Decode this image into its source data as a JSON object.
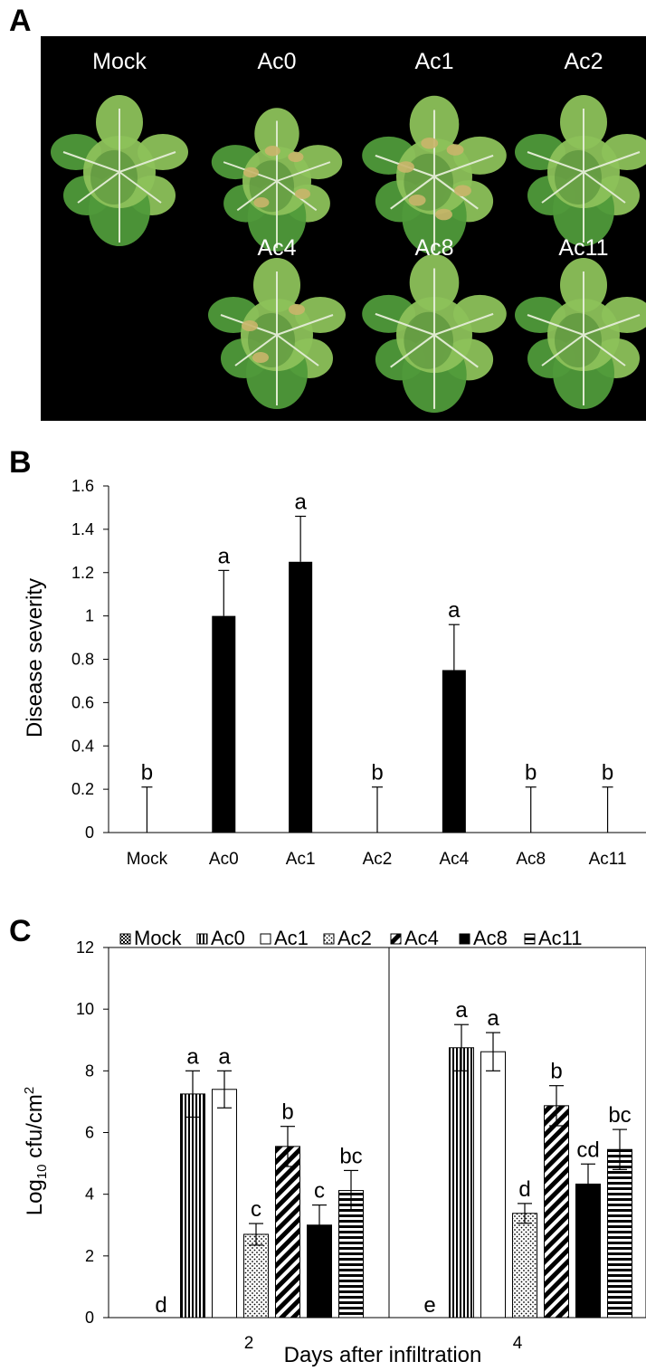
{
  "panels": {
    "a_letter": "A",
    "b_letter": "B",
    "c_letter": "C"
  },
  "photo": {
    "background_color": "#000000",
    "leaf_colors": {
      "main": "#4f9a3a",
      "dark": "#2f6e22",
      "light": "#8cc15a",
      "vein": "#dfead0",
      "lesion": "#c9b56a"
    },
    "row1": [
      {
        "label": "Mock",
        "lesions": 0
      },
      {
        "label": "Ac0",
        "lesions": 5
      },
      {
        "label": "Ac1",
        "lesions": 6
      },
      {
        "label": "Ac2",
        "lesions": 0
      }
    ],
    "row2": [
      {
        "label": "Ac4",
        "lesions": 3
      },
      {
        "label": "Ac8",
        "lesions": 0
      },
      {
        "label": "Ac11",
        "lesions": 0
      }
    ]
  },
  "chart_data": [
    {
      "type": "bar",
      "ylabel": "Disease severity",
      "xlabel": "",
      "ylim": [
        0,
        1.6
      ],
      "yticks": [
        0,
        0.2,
        0.4,
        0.6,
        0.8,
        1,
        1.2,
        1.4,
        1.6
      ],
      "ytick_labels": [
        "0",
        "0.2",
        "0.4",
        "0.6",
        "0.8",
        "1",
        "1.2",
        "1.4",
        "1.6"
      ],
      "categories": [
        "Mock",
        "Ac0",
        "Ac1",
        "Ac2",
        "Ac4",
        "Ac8",
        "Ac11"
      ],
      "values": [
        0,
        1,
        1.25,
        0,
        0.75,
        0,
        0
      ],
      "errors": [
        0.21,
        0.21,
        0.21,
        0.21,
        0.21,
        0.21,
        0.21
      ],
      "letters": [
        "b",
        "a",
        "a",
        "b",
        "a",
        "b",
        "b"
      ],
      "bar_color": "#000000",
      "grid": false
    },
    {
      "type": "bar",
      "ylabel_main": "Log",
      "ylabel_sub": "10",
      "ylabel_rest": " cfu/cm",
      "ylabel_sup": "2",
      "xlabel": "Days after infiltration",
      "ylim": [
        0,
        12
      ],
      "yticks": [
        0,
        2,
        4,
        6,
        8,
        10,
        12
      ],
      "ytick_labels": [
        "0",
        "2",
        "4",
        "6",
        "8",
        "10",
        "12"
      ],
      "categories": [
        "2",
        "4"
      ],
      "legend_position": "top",
      "series": [
        {
          "name": "Mock",
          "pattern": "checker",
          "values": [
            0,
            0
          ],
          "errors": [
            0,
            0
          ],
          "letters": [
            "d",
            "e"
          ]
        },
        {
          "name": "Ac0",
          "pattern": "vertical",
          "values": [
            7.25,
            8.75
          ],
          "errors": [
            0.75,
            0.75
          ],
          "letters": [
            "a",
            "a"
          ]
        },
        {
          "name": "Ac1",
          "pattern": "white",
          "values": [
            7.4,
            8.62
          ],
          "errors": [
            0.6,
            0.62
          ],
          "letters": [
            "a",
            "a"
          ]
        },
        {
          "name": "Ac2",
          "pattern": "dots",
          "values": [
            2.7,
            3.38
          ],
          "errors": [
            0.35,
            0.32
          ],
          "letters": [
            "c",
            "d"
          ]
        },
        {
          "name": "Ac4",
          "pattern": "diagonal",
          "values": [
            5.55,
            6.87
          ],
          "errors": [
            0.65,
            0.65
          ],
          "letters": [
            "b",
            "b"
          ]
        },
        {
          "name": "Ac8",
          "pattern": "black",
          "values": [
            3.0,
            4.33
          ],
          "errors": [
            0.65,
            0.65
          ],
          "letters": [
            "c",
            "cd"
          ]
        },
        {
          "name": "Ac11",
          "pattern": "horizontal",
          "values": [
            4.12,
            5.45
          ],
          "errors": [
            0.65,
            0.65
          ],
          "letters": [
            "bc",
            "bc"
          ]
        }
      ],
      "grid": false
    }
  ]
}
